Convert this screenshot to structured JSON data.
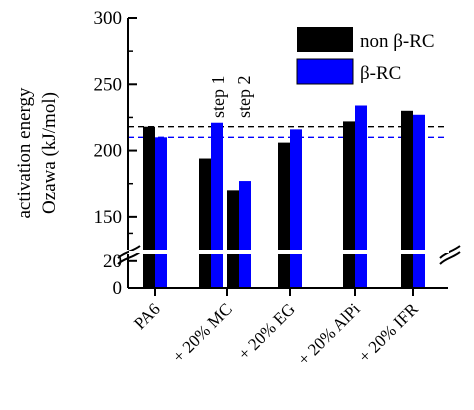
{
  "chart_data": {
    "type": "bar",
    "ylabel_line1": "activation energy",
    "ylabel_line2": "Ozawa (kJ/mol)",
    "categories": [
      "PA6",
      "+ 20% MC",
      "+ 20% EG",
      "+ 20% AlPi",
      "+ 20% IFR"
    ],
    "series": [
      {
        "name": "non β-RC",
        "color": "#000000",
        "values": [
          218,
          [
            194,
            170
          ],
          206,
          222,
          230
        ]
      },
      {
        "name": "β-RC",
        "color": "#0000ff",
        "values": [
          210,
          [
            221,
            177
          ],
          216,
          234,
          227
        ]
      }
    ],
    "annotations": [
      "step 1",
      "step 2"
    ],
    "y_upper_ticks": [
      150,
      200,
      250,
      300
    ],
    "y_lower_ticks": [
      0,
      20
    ],
    "y_upper_range": [
      125,
      300
    ],
    "y_lower_range": [
      0,
      25
    ],
    "reference_lines": [
      {
        "value": 218,
        "color": "#000000",
        "style": "dashed"
      },
      {
        "value": 210,
        "color": "#0000ff",
        "style": "dashed"
      }
    ],
    "legend_position": "top-right",
    "axis_break": true
  }
}
